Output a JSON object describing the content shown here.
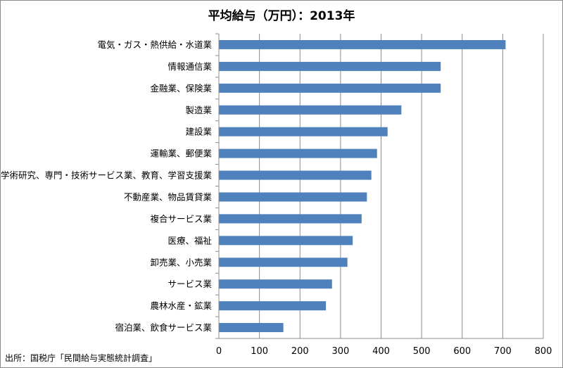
{
  "chart_data": {
    "type": "bar",
    "orientation": "horizontal",
    "title": "平均給与（万円）：2013年",
    "xlabel": "",
    "ylabel": "",
    "xlim": [
      0,
      800
    ],
    "x_ticks": [
      0,
      100,
      200,
      300,
      400,
      500,
      600,
      700,
      800
    ],
    "grid": true,
    "legend": "none",
    "bar_color": "#4f81bd",
    "categories": [
      "電気・ガス・熱供給・水道業",
      "情報通信業",
      "金融業、保険業",
      "製造業",
      "建設業",
      "運輸業、郵便業",
      "学術研究、専門・技術サービス業、教育、学習支援業",
      "不動産業、物品賃貸業",
      "複合サービス業",
      "医療、福祉",
      "卸売業、小売業",
      "サービス業",
      "農林水産・鉱業",
      "宿泊業、飲食サービス業"
    ],
    "values": [
      707,
      547,
      547,
      450,
      416,
      390,
      376,
      365,
      352,
      330,
      317,
      279,
      264,
      159
    ]
  },
  "source_note": "出所：国税庁「民間給与実態統計調査」"
}
